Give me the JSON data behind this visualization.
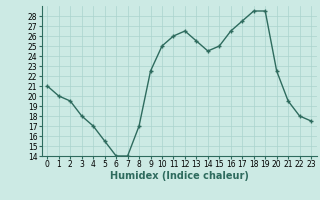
{
  "x": [
    0,
    1,
    2,
    3,
    4,
    5,
    6,
    7,
    8,
    9,
    10,
    11,
    12,
    13,
    14,
    15,
    16,
    17,
    18,
    19,
    20,
    21,
    22,
    23
  ],
  "y": [
    21.0,
    20.0,
    19.5,
    18.0,
    17.0,
    15.5,
    14.0,
    14.0,
    17.0,
    22.5,
    25.0,
    26.0,
    26.5,
    25.5,
    24.5,
    25.0,
    26.5,
    27.5,
    28.5,
    28.5,
    22.5,
    19.5,
    18.0,
    17.5
  ],
  "line_color": "#2e6b5e",
  "marker": "+",
  "marker_size": 3,
  "line_width": 1.0,
  "xlabel": "Humidex (Indice chaleur)",
  "xlabel_fontsize": 7,
  "xlabel_weight": "bold",
  "ylim": [
    14,
    29
  ],
  "xlim": [
    -0.5,
    23.5
  ],
  "yticks": [
    14,
    15,
    16,
    17,
    18,
    19,
    20,
    21,
    22,
    23,
    24,
    25,
    26,
    27,
    28
  ],
  "xticks": [
    0,
    1,
    2,
    3,
    4,
    5,
    6,
    7,
    8,
    9,
    10,
    11,
    12,
    13,
    14,
    15,
    16,
    17,
    18,
    19,
    20,
    21,
    22,
    23
  ],
  "xtick_labels": [
    "0",
    "1",
    "2",
    "3",
    "4",
    "5",
    "6",
    "7",
    "8",
    "9",
    "10",
    "11",
    "12",
    "13",
    "14",
    "15",
    "16",
    "17",
    "18",
    "19",
    "20",
    "21",
    "22",
    "23"
  ],
  "tick_fontsize": 5.5,
  "background_color": "#cceae4",
  "grid_color": "#aad4ce",
  "grid_linewidth": 0.5
}
